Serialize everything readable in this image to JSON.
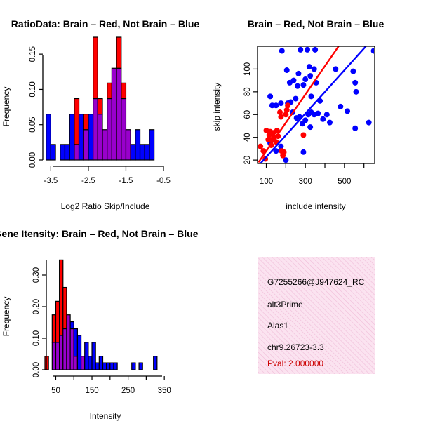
{
  "chart_data": [
    {
      "type": "bar",
      "id": "ratio",
      "title": "RatioData: Brain – Red, Not Brain – Blue",
      "xlabel": "Log2 Ratio Skip/Include",
      "ylabel": "Frequency",
      "xlim": [
        -3.75,
        -0.5
      ],
      "ylim": [
        0,
        0.175
      ],
      "bin_width": 0.125,
      "x_ticks": [
        -3.5,
        -2.5,
        -1.5,
        -0.5
      ],
      "x_tick_labels": [
        "-3.5",
        "-2.5",
        "-1.5",
        "-0.5"
      ],
      "y_ticks": [
        0.0,
        0.05,
        0.1,
        0.15
      ],
      "y_tick_labels": [
        "0.00",
        "0.05",
        "0.10",
        "0.15"
      ],
      "series": [
        {
          "name": "Brain",
          "color": "#ff0000",
          "bin_starts": [
            -2.875,
            -2.625,
            -2.375,
            -2.25,
            -2.125,
            -2.0,
            -1.875,
            -1.75,
            -1.625,
            -1.5
          ],
          "values": [
            0.087,
            0.065,
            0.174,
            0.087,
            0.043,
            0.109,
            0.13,
            0.174,
            0.109,
            0.043
          ]
        },
        {
          "name": "Not Brain",
          "color": "#0000ff",
          "bin_starts": [
            -3.625,
            -3.5,
            -3.25,
            -3.125,
            -3.0,
            -2.875,
            -2.75,
            -2.625,
            -2.5,
            -2.375,
            -2.25,
            -2.125,
            -2.0,
            -1.875,
            -1.75,
            -1.625,
            -1.5,
            -1.375,
            -1.25,
            -1.125,
            -1.0,
            -0.875
          ],
          "values": [
            0.065,
            0.022,
            0.022,
            0.022,
            0.065,
            0.022,
            0.065,
            0.043,
            0.065,
            0.087,
            0.065,
            0.043,
            0.087,
            0.13,
            0.13,
            0.087,
            0.043,
            0.022,
            0.043,
            0.022,
            0.022,
            0.043
          ]
        }
      ]
    },
    {
      "type": "scatter",
      "id": "scatter",
      "title": "Brain – Red, Not Brain – Blue",
      "xlabel": "include intensity",
      "ylabel": "skip intensity",
      "xlim": [
        55,
        655
      ],
      "ylim": [
        17,
        120
      ],
      "x_ticks": [
        100,
        300,
        500
      ],
      "x_tick_labels": [
        "100",
        "300",
        "500"
      ],
      "x_minor_ticks": [
        200,
        400,
        600
      ],
      "y_ticks": [
        20,
        40,
        60,
        80,
        100
      ],
      "y_tick_labels": [
        "20",
        "40",
        "60",
        "80",
        "100"
      ],
      "series": [
        {
          "name": "Brain",
          "color": "#ff0000",
          "points": [
            [
              70,
              32
            ],
            [
              85,
              28
            ],
            [
              95,
              21
            ],
            [
              100,
              46
            ],
            [
              110,
              38
            ],
            [
              115,
              42
            ],
            [
              120,
              45
            ],
            [
              125,
              33
            ],
            [
              130,
              38
            ],
            [
              135,
              44
            ],
            [
              140,
              40
            ],
            [
              150,
              36
            ],
            [
              155,
              46
            ],
            [
              160,
              41
            ],
            [
              170,
              62
            ],
            [
              175,
              58
            ],
            [
              178,
              28
            ],
            [
              185,
              24
            ],
            [
              190,
              27
            ],
            [
              200,
              60
            ],
            [
              205,
              64
            ],
            [
              210,
              68
            ],
            [
              290,
              42
            ]
          ],
          "trend": [
            [
              60,
              18
            ],
            [
              470,
              120
            ]
          ]
        },
        {
          "name": "Not Brain",
          "color": "#0000ff",
          "points": [
            [
              180,
              116
            ],
            [
              205,
              99
            ],
            [
              275,
              117
            ],
            [
              310,
              117
            ],
            [
              320,
              102
            ],
            [
              265,
              96
            ],
            [
              240,
              90
            ],
            [
              220,
              88
            ],
            [
              290,
              86
            ],
            [
              300,
              91
            ],
            [
              325,
              94
            ],
            [
              330,
              76
            ],
            [
              345,
              100
            ],
            [
              350,
              117
            ],
            [
              355,
              88
            ],
            [
              375,
              72
            ],
            [
              410,
              60
            ],
            [
              455,
              100
            ],
            [
              480,
              67
            ],
            [
              515,
              63
            ],
            [
              545,
              98
            ],
            [
              555,
              88
            ],
            [
              560,
              80
            ],
            [
              555,
              48
            ],
            [
              625,
              53
            ],
            [
              650,
              116
            ],
            [
              120,
              76
            ],
            [
              130,
              68
            ],
            [
              150,
              68
            ],
            [
              175,
              70
            ],
            [
              210,
              70
            ],
            [
              225,
              71
            ],
            [
              250,
              74
            ],
            [
              235,
              62
            ],
            [
              255,
              57
            ],
            [
              270,
              58
            ],
            [
              300,
              55
            ],
            [
              315,
              60
            ],
            [
              325,
              49
            ],
            [
              330,
              62
            ],
            [
              345,
              60
            ],
            [
              365,
              61
            ],
            [
              390,
              56
            ],
            [
              425,
              53
            ],
            [
              260,
              85
            ],
            [
              285,
              52
            ],
            [
              120,
              35
            ],
            [
              150,
              28
            ],
            [
              175,
              32
            ],
            [
              290,
              27
            ],
            [
              200,
              20
            ]
          ],
          "trend": [
            [
              70,
              17
            ],
            [
              610,
              120
            ]
          ]
        }
      ]
    },
    {
      "type": "bar",
      "id": "intensity",
      "title": "Gene Itensity: Brain – Red, Not Brain – Blue",
      "xlabel": "Intensity",
      "ylabel": "Frequency",
      "xlim": [
        20,
        340
      ],
      "ylim": [
        0,
        0.36
      ],
      "bin_width": 10,
      "x_ticks": [
        50,
        150,
        250,
        350
      ],
      "x_tick_labels": [
        "50",
        "150",
        "250",
        "350"
      ],
      "x_minor_ticks": [
        100,
        200,
        300
      ],
      "y_ticks": [
        0.0,
        0.1,
        0.2,
        0.3
      ],
      "y_tick_labels": [
        "0.00",
        "0.10",
        "0.20",
        "0.30"
      ],
      "series": [
        {
          "name": "Brain",
          "color": "#ff0000",
          "bin_starts": [
            20,
            40,
            50,
            60,
            70,
            80,
            90,
            100,
            120
          ],
          "values": [
            0.043,
            0.174,
            0.217,
            0.348,
            0.261,
            0.174,
            0.13,
            0.043,
            0.043
          ]
        },
        {
          "name": "Not Brain",
          "color": "#0000ff",
          "bin_starts": [
            40,
            50,
            60,
            70,
            80,
            90,
            100,
            110,
            120,
            130,
            140,
            150,
            160,
            170,
            180,
            190,
            200,
            210,
            260,
            280,
            320
          ],
          "values": [
            0.087,
            0.087,
            0.109,
            0.13,
            0.174,
            0.152,
            0.13,
            0.109,
            0.043,
            0.087,
            0.043,
            0.087,
            0.022,
            0.043,
            0.022,
            0.022,
            0.022,
            0.022,
            0.022,
            0.022,
            0.043
          ]
        }
      ]
    }
  ],
  "info_box": {
    "background": "#fbe3f0",
    "lines": [
      "G7255266@J947624_RC",
      "alt3Prime",
      "Alas1",
      "chr9.26723-3.3"
    ],
    "pval": "Pval: 2.000000",
    "pval_color": "#cc0000"
  },
  "overlap_color": "#9900cc"
}
